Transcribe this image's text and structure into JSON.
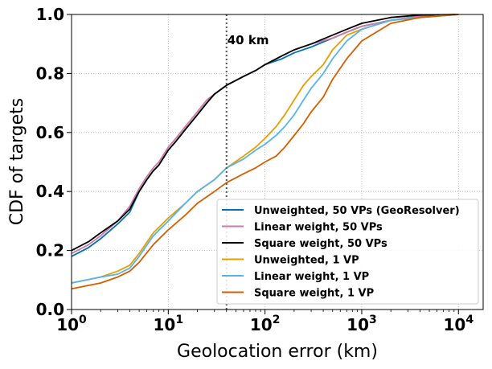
{
  "chart_data": {
    "type": "line",
    "xlabel": "Geolocation error (km)",
    "ylabel": "CDF of targets",
    "xscale": "log",
    "xlim": [
      1,
      18000
    ],
    "ylim": [
      0,
      1
    ],
    "x_ticks": [
      {
        "value": 1,
        "base": "10",
        "exp": "0"
      },
      {
        "value": 10,
        "base": "10",
        "exp": "1"
      },
      {
        "value": 100,
        "base": "10",
        "exp": "2"
      },
      {
        "value": 1000,
        "base": "10",
        "exp": "3"
      },
      {
        "value": 10000,
        "base": "10",
        "exp": "4"
      }
    ],
    "y_ticks": [
      "0.0",
      "0.2",
      "0.4",
      "0.6",
      "0.8",
      "1.0"
    ],
    "grid": true,
    "legend_position": "bottom-right",
    "annotation": {
      "text": "40 km",
      "x": 40
    },
    "series": [
      {
        "name": "Unweighted, 50 VPs (GeoResolver)",
        "color": "#0072B2",
        "points": [
          [
            1,
            0.18
          ],
          [
            1.5,
            0.21
          ],
          [
            2,
            0.24
          ],
          [
            3,
            0.29
          ],
          [
            4,
            0.33
          ],
          [
            5,
            0.4
          ],
          [
            6,
            0.44
          ],
          [
            7,
            0.47
          ],
          [
            8,
            0.49
          ],
          [
            10,
            0.54
          ],
          [
            12,
            0.57
          ],
          [
            15,
            0.61
          ],
          [
            20,
            0.66
          ],
          [
            25,
            0.7
          ],
          [
            30,
            0.73
          ],
          [
            40,
            0.76
          ],
          [
            60,
            0.79
          ],
          [
            80,
            0.81
          ],
          [
            100,
            0.83
          ],
          [
            150,
            0.85
          ],
          [
            200,
            0.87
          ],
          [
            300,
            0.89
          ],
          [
            500,
            0.92
          ],
          [
            700,
            0.94
          ],
          [
            1000,
            0.96
          ],
          [
            2000,
            0.98
          ],
          [
            4000,
            0.995
          ],
          [
            10000,
            1.0
          ]
        ]
      },
      {
        "name": "Linear weight, 50 VPs",
        "color": "#CC79A7",
        "points": [
          [
            1,
            0.19
          ],
          [
            1.5,
            0.22
          ],
          [
            2,
            0.25
          ],
          [
            3,
            0.3
          ],
          [
            4,
            0.35
          ],
          [
            5,
            0.41
          ],
          [
            6,
            0.45
          ],
          [
            7,
            0.48
          ],
          [
            8,
            0.5
          ],
          [
            10,
            0.55
          ],
          [
            12,
            0.58
          ],
          [
            15,
            0.62
          ],
          [
            20,
            0.67
          ],
          [
            25,
            0.71
          ],
          [
            30,
            0.73
          ],
          [
            40,
            0.76
          ],
          [
            60,
            0.79
          ],
          [
            80,
            0.81
          ],
          [
            100,
            0.83
          ],
          [
            150,
            0.86
          ],
          [
            200,
            0.88
          ],
          [
            300,
            0.9
          ],
          [
            500,
            0.92
          ],
          [
            700,
            0.94
          ],
          [
            1000,
            0.96
          ],
          [
            2000,
            0.98
          ],
          [
            4000,
            0.995
          ],
          [
            10000,
            1.0
          ]
        ]
      },
      {
        "name": "Square weight, 50 VPs",
        "color": "#000000",
        "points": [
          [
            1,
            0.2
          ],
          [
            1.5,
            0.23
          ],
          [
            2,
            0.26
          ],
          [
            3,
            0.3
          ],
          [
            4,
            0.34
          ],
          [
            5,
            0.4
          ],
          [
            6,
            0.44
          ],
          [
            7,
            0.47
          ],
          [
            8,
            0.49
          ],
          [
            10,
            0.54
          ],
          [
            12,
            0.57
          ],
          [
            15,
            0.61
          ],
          [
            20,
            0.66
          ],
          [
            25,
            0.7
          ],
          [
            30,
            0.73
          ],
          [
            40,
            0.76
          ],
          [
            60,
            0.79
          ],
          [
            80,
            0.81
          ],
          [
            100,
            0.83
          ],
          [
            150,
            0.86
          ],
          [
            200,
            0.88
          ],
          [
            300,
            0.9
          ],
          [
            500,
            0.93
          ],
          [
            700,
            0.95
          ],
          [
            1000,
            0.97
          ],
          [
            2000,
            0.99
          ],
          [
            4000,
            0.998
          ],
          [
            10000,
            1.0
          ]
        ]
      },
      {
        "name": "Unweighted, 1 VP",
        "color": "#E69F00",
        "points": [
          [
            1,
            0.09
          ],
          [
            2,
            0.11
          ],
          [
            3,
            0.13
          ],
          [
            4,
            0.15
          ],
          [
            5,
            0.19
          ],
          [
            7,
            0.26
          ],
          [
            10,
            0.31
          ],
          [
            15,
            0.36
          ],
          [
            20,
            0.4
          ],
          [
            30,
            0.44
          ],
          [
            40,
            0.48
          ],
          [
            60,
            0.52
          ],
          [
            80,
            0.55
          ],
          [
            100,
            0.58
          ],
          [
            130,
            0.62
          ],
          [
            160,
            0.66
          ],
          [
            200,
            0.71
          ],
          [
            250,
            0.76
          ],
          [
            300,
            0.79
          ],
          [
            400,
            0.83
          ],
          [
            500,
            0.88
          ],
          [
            700,
            0.93
          ],
          [
            1000,
            0.95
          ],
          [
            2000,
            0.98
          ],
          [
            4000,
            0.99
          ],
          [
            10000,
            1.0
          ]
        ]
      },
      {
        "name": "Linear weight, 1 VP",
        "color": "#56B4E9",
        "points": [
          [
            1,
            0.09
          ],
          [
            2,
            0.11
          ],
          [
            3,
            0.12
          ],
          [
            4,
            0.14
          ],
          [
            5,
            0.18
          ],
          [
            7,
            0.25
          ],
          [
            10,
            0.3
          ],
          [
            15,
            0.36
          ],
          [
            20,
            0.4
          ],
          [
            30,
            0.44
          ],
          [
            40,
            0.48
          ],
          [
            60,
            0.51
          ],
          [
            80,
            0.54
          ],
          [
            100,
            0.56
          ],
          [
            130,
            0.59
          ],
          [
            160,
            0.62
          ],
          [
            200,
            0.66
          ],
          [
            250,
            0.71
          ],
          [
            300,
            0.75
          ],
          [
            400,
            0.8
          ],
          [
            500,
            0.85
          ],
          [
            700,
            0.91
          ],
          [
            1000,
            0.95
          ],
          [
            2000,
            0.98
          ],
          [
            4000,
            0.99
          ],
          [
            10000,
            1.0
          ]
        ]
      },
      {
        "name": "Square weight, 1 VP",
        "color": "#D55E00",
        "points": [
          [
            1,
            0.07
          ],
          [
            2,
            0.09
          ],
          [
            3,
            0.11
          ],
          [
            4,
            0.13
          ],
          [
            5,
            0.16
          ],
          [
            7,
            0.22
          ],
          [
            10,
            0.27
          ],
          [
            15,
            0.32
          ],
          [
            20,
            0.36
          ],
          [
            30,
            0.4
          ],
          [
            40,
            0.43
          ],
          [
            60,
            0.46
          ],
          [
            80,
            0.48
          ],
          [
            100,
            0.5
          ],
          [
            130,
            0.52
          ],
          [
            160,
            0.55
          ],
          [
            200,
            0.59
          ],
          [
            250,
            0.63
          ],
          [
            300,
            0.67
          ],
          [
            400,
            0.72
          ],
          [
            500,
            0.78
          ],
          [
            700,
            0.85
          ],
          [
            1000,
            0.91
          ],
          [
            2000,
            0.97
          ],
          [
            4000,
            0.99
          ],
          [
            10000,
            1.0
          ]
        ]
      }
    ]
  }
}
